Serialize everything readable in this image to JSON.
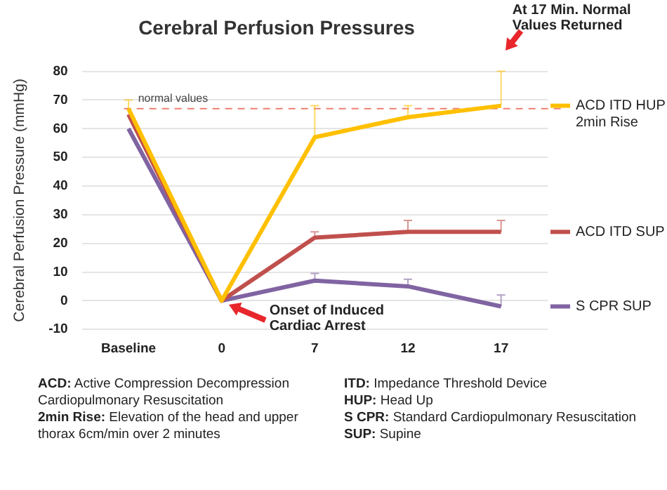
{
  "chart_data": {
    "type": "line",
    "title": "Cerebral Perfusion Pressures",
    "ylabel": "Cerebral Perfusion Pressure (mmHg)",
    "categories": [
      "Baseline",
      "0",
      "7",
      "12",
      "17"
    ],
    "series": [
      {
        "name": "ACD ITD HUP 2min Rise",
        "color": "#ffc000",
        "values": [
          67,
          0,
          57,
          64,
          68
        ],
        "errors": [
          [
            67,
            70
          ],
          null,
          [
            57,
            68
          ],
          [
            64,
            68
          ],
          [
            68,
            80
          ]
        ]
      },
      {
        "name": "ACD ITD SUP",
        "color": "#c0504d",
        "values": [
          65,
          0,
          22,
          24,
          24
        ],
        "errors": [
          null,
          null,
          [
            22,
            24
          ],
          [
            24,
            28
          ],
          [
            24,
            28
          ]
        ]
      },
      {
        "name": "S CPR SUP",
        "color": "#8064a2",
        "values": [
          60,
          0,
          7,
          5,
          -2
        ],
        "errors": [
          null,
          null,
          [
            7,
            9.5
          ],
          [
            5,
            7.5
          ],
          [
            -2,
            2
          ]
        ]
      }
    ],
    "ylim": [
      -10,
      80
    ],
    "yticks": [
      -10,
      0,
      10,
      20,
      30,
      40,
      50,
      60,
      70,
      80
    ],
    "grid": "y",
    "legend": "right",
    "marker": "none",
    "line_style": "solid",
    "ref_lines": [
      {
        "axis": "y",
        "value": 67,
        "label": "normal values",
        "color": "#f08070",
        "line_style": "dashed"
      }
    ],
    "annotations": [
      "Onset of Induced Cardiac Arrest",
      "At 17 Min. Normal Values Returned",
      "ACD: Active Compression Decompression Cardiopulmonary Resuscitation",
      "2min Rise: Elevation of the head and upper thorax 6cm/min over 2 minutes",
      "ITD: Impedance Threshold Device",
      "HUP: Head Up",
      "S CPR: Standard Cardiopulmonary Resuscitation",
      "SUP: Supine"
    ]
  }
}
